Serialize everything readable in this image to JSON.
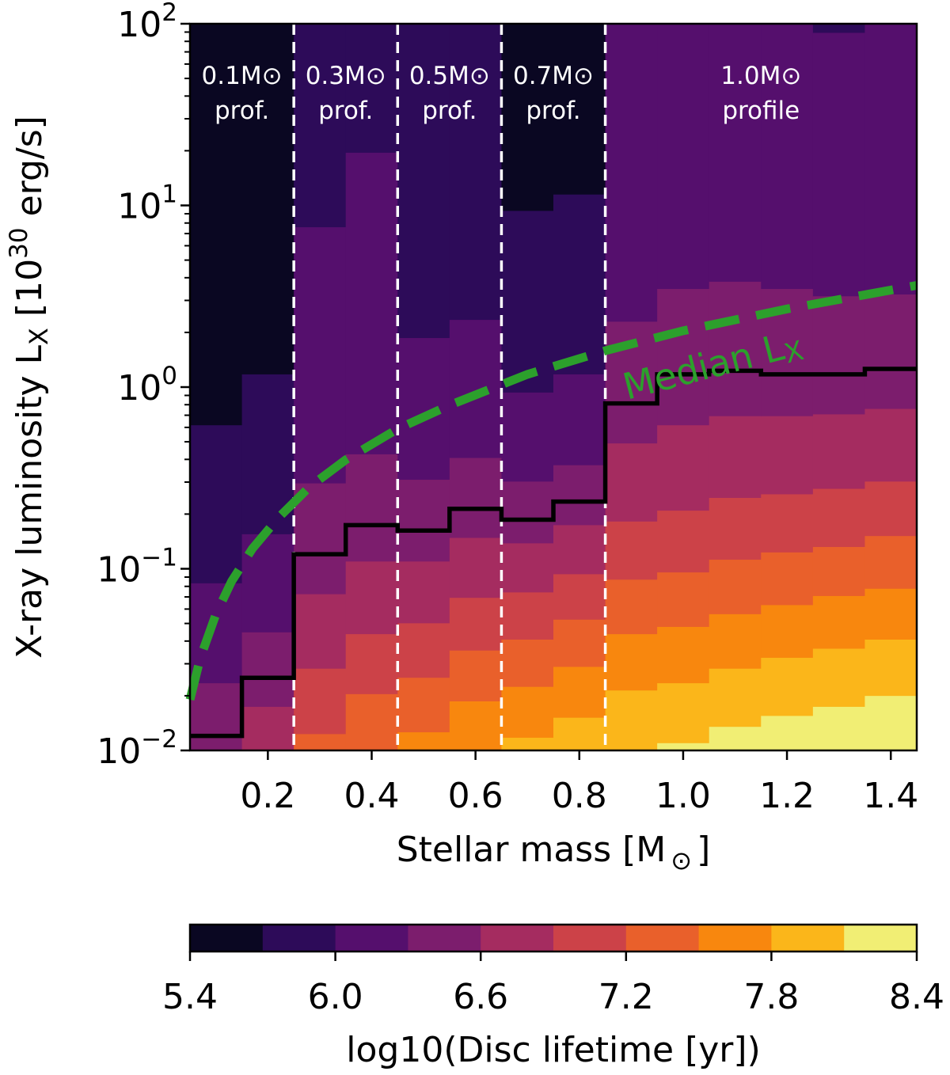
{
  "chart_data": {
    "type": "heatmap",
    "xlabel": {
      "text": "Stellar mass [M",
      "sun": "⊙",
      "close": "]"
    },
    "ylabel": {
      "pre": "X-ray luminosity L",
      "sub": "X",
      "mid": " [10",
      "sup": "30",
      "post": " erg/s]"
    },
    "xlim": [
      0.05,
      1.45
    ],
    "ylim_log10": [
      -2,
      2
    ],
    "yscale": "log",
    "xticks": [
      0.2,
      0.4,
      0.6,
      0.8,
      1.0,
      1.2,
      1.4
    ],
    "xtick_labels": [
      "0.2",
      "0.4",
      "0.6",
      "0.8",
      "1.0",
      "1.2",
      "1.4"
    ],
    "yticks": [
      {
        "base": "10",
        "exp": "2",
        "value": 2
      },
      {
        "base": "10",
        "exp": "1",
        "value": 1
      },
      {
        "base": "10",
        "exp": "0",
        "value": 0
      },
      {
        "base": "10",
        "exp": "−1",
        "value": -1
      },
      {
        "base": "10",
        "exp": "−2",
        "value": -2
      }
    ],
    "colorbar": {
      "label": "log10(Disc lifetime [yr])",
      "levels": [
        5.4,
        5.7,
        6.0,
        6.3,
        6.6,
        6.9,
        7.2,
        7.5,
        7.8,
        8.1,
        8.4
      ],
      "colors": [
        "#0a0722",
        "#2d0b59",
        "#550f6d",
        "#7c1d6d",
        "#a52c60",
        "#cc4248",
        "#e9602b",
        "#f8870e",
        "#fbb61a",
        "#f1ee74"
      ],
      "ticks": [
        5.4,
        6.0,
        6.6,
        7.2,
        7.8,
        8.4
      ],
      "tick_labels": [
        "5.4",
        "6.0",
        "6.6",
        "7.2",
        "7.8",
        "8.4"
      ]
    },
    "columns_note": "each column: mass bin centre, lifetime-bin lower values from top to bottom, log10(Lx) edges between bands",
    "columns": [
      {
        "mass": 0.1,
        "levels": [
          5.4,
          5.7,
          6.0,
          6.3
        ],
        "edges": [
          -0.21,
          -1.08,
          -1.63
        ]
      },
      {
        "mass": 0.2,
        "levels": [
          5.4,
          5.7,
          6.0,
          6.3,
          6.6
        ],
        "edges": [
          0.07,
          -0.81,
          -1.35,
          -1.76
        ]
      },
      {
        "mass": 0.3,
        "levels": [
          5.7,
          6.0,
          6.3,
          6.6,
          6.9,
          7.2
        ],
        "edges": [
          0.88,
          -0.53,
          -1.14,
          -1.55,
          -1.91
        ]
      },
      {
        "mass": 0.4,
        "levels": [
          5.7,
          6.0,
          6.3,
          6.6,
          6.9,
          7.2
        ],
        "edges": [
          1.29,
          -0.37,
          -0.96,
          -1.36,
          -1.69
        ]
      },
      {
        "mass": 0.5,
        "levels": [
          5.7,
          6.0,
          6.3,
          6.6,
          6.9,
          7.2,
          7.5
        ],
        "edges": [
          0.27,
          -0.51,
          -0.96,
          -1.3,
          -1.6,
          -1.9
        ]
      },
      {
        "mass": 0.6,
        "levels": [
          5.7,
          6.0,
          6.3,
          6.6,
          6.9,
          7.2,
          7.5
        ],
        "edges": [
          0.37,
          -0.39,
          -0.83,
          -1.16,
          -1.45,
          -1.73
        ]
      },
      {
        "mass": 0.7,
        "levels": [
          5.4,
          5.7,
          6.0,
          6.3,
          6.6,
          6.9,
          7.2,
          7.5,
          7.8
        ],
        "edges": [
          0.97,
          -0.03,
          -0.52,
          -0.86,
          -1.13,
          -1.39,
          -1.65,
          -1.93
        ]
      },
      {
        "mass": 0.8,
        "levels": [
          5.4,
          5.7,
          6.0,
          6.3,
          6.6,
          6.9,
          7.2,
          7.5,
          7.8
        ],
        "edges": [
          1.06,
          0.07,
          -0.43,
          -0.76,
          -1.03,
          -1.28,
          -1.54,
          -1.82
        ]
      },
      {
        "mass": 0.9,
        "levels": [
          6.0,
          6.3,
          6.6,
          6.9,
          7.2,
          7.5,
          7.8
        ],
        "edges": [
          0.36,
          -0.31,
          -0.74,
          -1.06,
          -1.36,
          -1.67
        ]
      },
      {
        "mass": 1.0,
        "levels": [
          6.0,
          6.3,
          6.6,
          6.9,
          7.2,
          7.5,
          7.8,
          8.1
        ],
        "edges": [
          0.54,
          -0.21,
          -0.68,
          -1.02,
          -1.32,
          -1.63,
          -1.96
        ]
      },
      {
        "mass": 1.1,
        "levels": [
          6.0,
          6.3,
          6.6,
          6.9,
          7.2,
          7.5,
          7.8,
          8.1
        ],
        "edges": [
          0.58,
          -0.16,
          -0.61,
          -0.95,
          -1.25,
          -1.55,
          -1.87
        ]
      },
      {
        "mass": 1.2,
        "levels": [
          6.0,
          6.3,
          6.6,
          6.9,
          7.2,
          7.5,
          7.8,
          8.1
        ],
        "edges": [
          0.54,
          -0.16,
          -0.59,
          -0.91,
          -1.2,
          -1.49,
          -1.81
        ]
      },
      {
        "mass": 1.3,
        "levels": [
          5.7,
          6.0,
          6.3,
          6.6,
          6.9,
          7.2,
          7.5,
          7.8,
          8.1
        ],
        "edges": [
          1.95,
          0.5,
          -0.15,
          -0.56,
          -0.88,
          -1.15,
          -1.44,
          -1.76
        ]
      },
      {
        "mass": 1.4,
        "levels": [
          6.0,
          6.3,
          6.6,
          6.9,
          7.2,
          7.5,
          7.8,
          8.1
        ],
        "edges": [
          0.51,
          -0.12,
          -0.52,
          -0.82,
          -1.11,
          -1.39,
          -1.7
        ]
      }
    ],
    "black_line": {
      "mass": [
        0.1,
        0.2,
        0.3,
        0.4,
        0.5,
        0.6,
        0.7,
        0.8,
        0.9,
        1.0,
        1.1,
        1.2,
        1.3,
        1.4
      ],
      "log10_lx": [
        -1.92,
        -1.6,
        -0.92,
        -0.76,
        -0.79,
        -0.67,
        -0.73,
        -0.63,
        -0.09,
        0.07,
        0.09,
        0.07,
        0.07,
        0.1
      ]
    },
    "median_lx": {
      "label": "Median L",
      "label_sub": "X",
      "color": "#2ca02c",
      "mass": [
        0.05,
        0.07,
        0.1,
        0.13,
        0.17,
        0.22,
        0.28,
        0.35,
        0.45,
        0.55,
        0.7,
        0.85,
        1.0,
        1.2,
        1.45
      ],
      "log10_lx": [
        -1.72,
        -1.49,
        -1.25,
        -1.07,
        -0.89,
        -0.72,
        -0.55,
        -0.4,
        -0.23,
        -0.1,
        0.07,
        0.2,
        0.31,
        0.43,
        0.56
      ]
    },
    "profile_dividers": [
      0.25,
      0.45,
      0.65,
      0.85
    ],
    "profile_labels": [
      {
        "mass": 0.15,
        "line1": "0.1M⊙",
        "line2": "prof."
      },
      {
        "mass": 0.35,
        "line1": "0.3M⊙",
        "line2": "prof."
      },
      {
        "mass": 0.55,
        "line1": "0.5M⊙",
        "line2": "prof."
      },
      {
        "mass": 0.75,
        "line1": "0.7M⊙",
        "line2": "prof."
      },
      {
        "mass": 1.15,
        "line1": "1.0M⊙",
        "line2": "profile"
      }
    ]
  }
}
